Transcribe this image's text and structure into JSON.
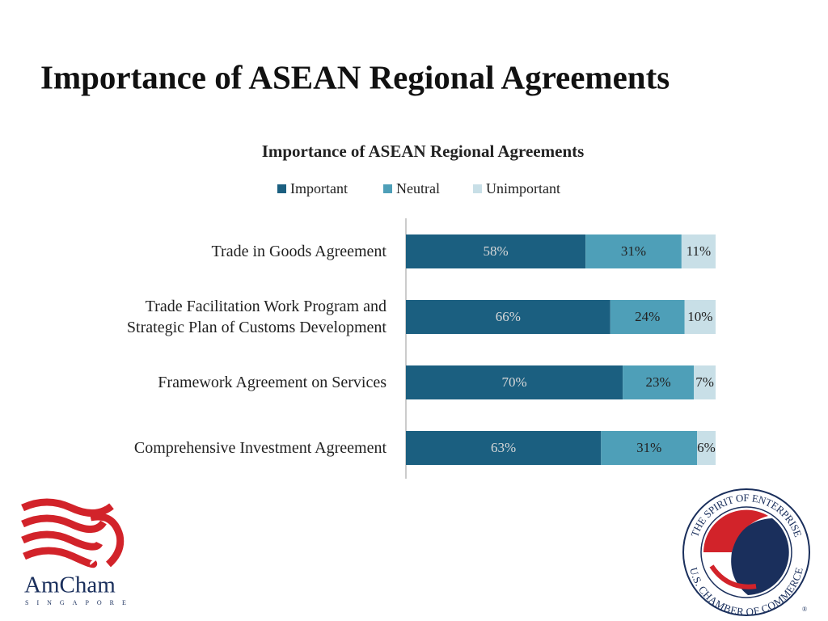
{
  "slide_title": "Importance of ASEAN Regional Agreements",
  "chart_data": {
    "type": "stacked-hbar",
    "title": "Importance of ASEAN Regional Agreements",
    "categories": [
      "Trade in Goods Agreement",
      "Trade Facilitation Work Program and\nStrategic Plan of Customs Development",
      "Framework Agreement on Services",
      "Comprehensive Investment Agreement"
    ],
    "series": [
      {
        "name": "Important",
        "color": "#1b5f80",
        "values": [
          58,
          66,
          70,
          63
        ],
        "value_labels": [
          "58%",
          "66%",
          "70%",
          "63%"
        ]
      },
      {
        "name": "Neutral",
        "color": "#4e9fb8",
        "values": [
          31,
          24,
          23,
          31
        ],
        "value_labels": [
          "31%",
          "24%",
          "23%",
          "31%"
        ]
      },
      {
        "name": "Unimportant",
        "color": "#c8dfe7",
        "values": [
          11,
          10,
          7,
          6
        ],
        "value_labels": [
          "11%",
          "10%",
          "7%",
          "6%"
        ]
      }
    ],
    "xlim": [
      0,
      100
    ],
    "legend": "top"
  },
  "logos": {
    "amcham": "AmCham",
    "amcham_sub": "SINGAPORE",
    "seal_top": "THE SPIRIT OF ENTERPRISE",
    "seal_bottom": "U.S. CHAMBER OF COMMERCE",
    "registered": "®"
  }
}
